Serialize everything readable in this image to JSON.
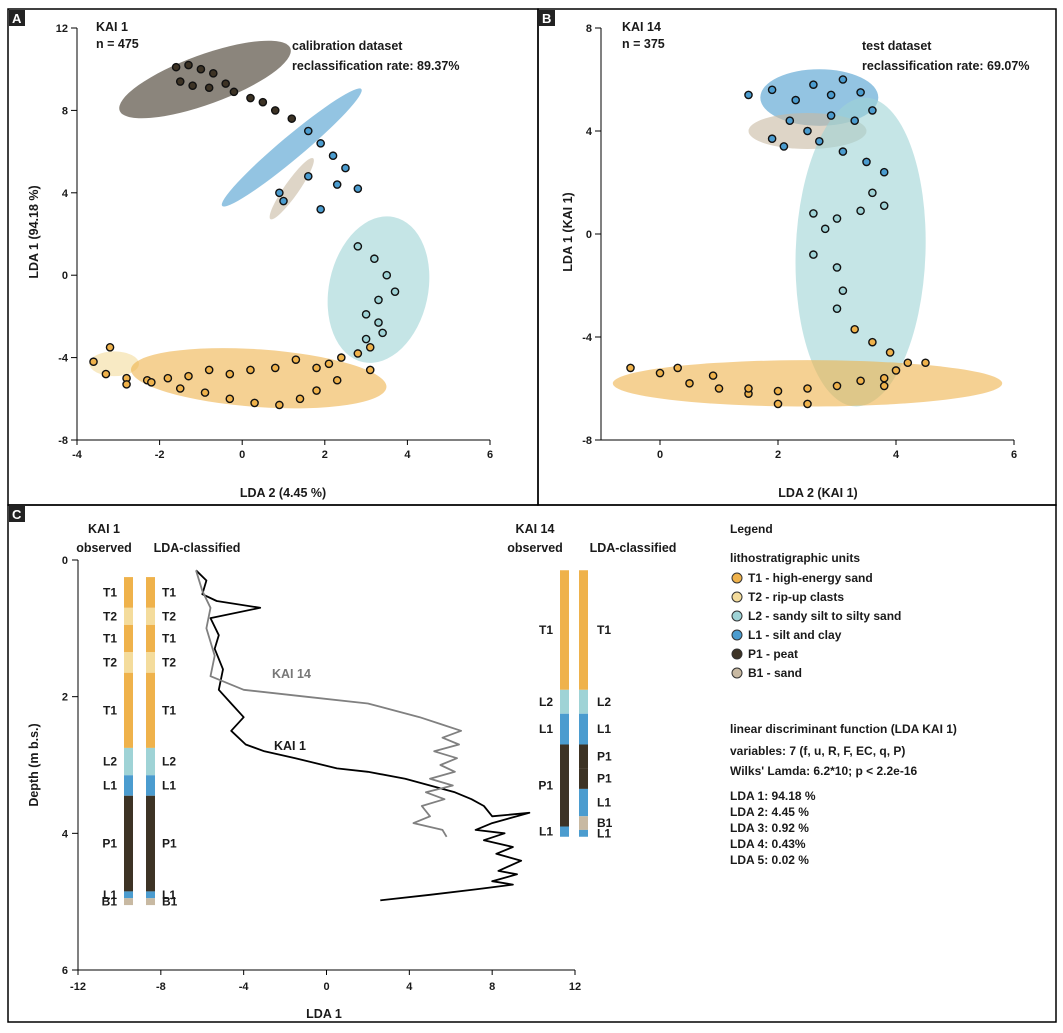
{
  "colors": {
    "T1": "#efb24b",
    "T2": "#f4dc9c",
    "L2": "#9fd3d6",
    "L1": "#4b9ccf",
    "P1": "#3d3325",
    "B1": "#c8b9a2"
  },
  "panelA": {
    "letter": "A",
    "site": "KAI 1",
    "n": "n = 475",
    "dataset": "calibration dataset",
    "rate": "reclassification rate: 89.37%",
    "xlabel": "LDA 2 (4.45 %)",
    "ylabel": "LDA 1 (94.18 %)",
    "xticks": [
      "-4",
      "-2",
      "0",
      "2",
      "4",
      "6"
    ],
    "yticks": [
      "12",
      "8",
      "4",
      "0",
      "-4",
      "-8"
    ]
  },
  "panelB": {
    "letter": "B",
    "site": "KAI 14",
    "n": "n = 375",
    "dataset": "test dataset",
    "rate": "reclassification rate: 69.07%",
    "xlabel": "LDA 2 (KAI 1)",
    "ylabel": "LDA 1 (KAI 1)",
    "xticks": [
      "0",
      "2",
      "4",
      "6"
    ],
    "yticks": [
      "8",
      "4",
      "0",
      "-4",
      "-8"
    ]
  },
  "panelC": {
    "letter": "C",
    "kai1_title": "KAI 1",
    "kai14_title": "KAI 14",
    "observed": "observed",
    "classified": "LDA-classified",
    "xlabel": "LDA 1",
    "ylabel": "Depth (m b.s.)",
    "xticks": [
      "-12",
      "-8",
      "-4",
      "0",
      "4",
      "8",
      "12"
    ],
    "yticks": [
      "0",
      "2",
      "4",
      "6"
    ],
    "kai14_curve_label": "KAI 14",
    "kai1_curve_label": "KAI 1",
    "kai1_obs_labels": [
      "T1",
      "T2",
      "T1",
      "T2",
      "T1",
      "L2",
      "L1",
      "P1",
      "L1",
      "B1"
    ],
    "kai1_cls_labels": [
      "T1",
      "T2",
      "T1",
      "T2",
      "T1",
      "L2",
      "L1",
      "P1",
      "L1",
      "B1"
    ],
    "kai14_obs_labels": [
      "T1",
      "L2",
      "L1",
      "P1",
      "L1"
    ],
    "kai14_cls_labels": [
      "T1",
      "L2",
      "L1",
      "P1",
      "P1",
      "L1",
      "B1",
      "L1"
    ]
  },
  "legend": {
    "title": "Legend",
    "units_title": "lithostratigraphic units",
    "items": [
      {
        "code": "T1",
        "label": "T1 - high-energy sand"
      },
      {
        "code": "T2",
        "label": "T2 - rip-up clasts"
      },
      {
        "code": "L2",
        "label": "L2 - sandy silt to silty sand"
      },
      {
        "code": "L1",
        "label": "L1 - silt and clay"
      },
      {
        "code": "P1",
        "label": "P1 - peat"
      },
      {
        "code": "B1",
        "label": "B1 - sand"
      }
    ],
    "lda_title": "linear discriminant function (LDA KAI 1)",
    "variables": "variables: 7 (f, u, R, F, EC, q, P)",
    "wilks": "Wilks' Lamda: 6.2*10; p < 2.2e-16",
    "lda_lines": [
      "LDA 1: 94.18 %",
      "LDA 2: 4.45 %",
      "LDA 3: 0.92 %",
      "LDA 4: 0.43%",
      "LDA 5: 0.02 %"
    ]
  },
  "chart_data": [
    {
      "type": "scatter",
      "title": "KAI 1",
      "xlabel": "LDA 2 (4.45 %)",
      "ylabel": "LDA 1 (94.18 %)",
      "xlim": [
        -4,
        6
      ],
      "ylim": [
        -8,
        12
      ],
      "ellipses": [
        {
          "unit": "P1",
          "cx": -0.9,
          "cy": 9.5,
          "rx": 2.2,
          "ry": 1.2,
          "angle_deg": -20
        },
        {
          "unit": "L1",
          "cx": 1.2,
          "cy": 6.2,
          "rx": 2.2,
          "ry": 0.55,
          "angle_deg": -40
        },
        {
          "unit": "B1",
          "cx": 1.2,
          "cy": 4.2,
          "rx": 0.9,
          "ry": 0.35,
          "angle_deg": -55
        },
        {
          "unit": "L2",
          "cx": 3.3,
          "cy": -0.7,
          "rx": 1.2,
          "ry": 3.6,
          "angle_deg": 12
        },
        {
          "unit": "T2",
          "cx": -3.1,
          "cy": -4.3,
          "rx": 0.6,
          "ry": 0.6,
          "angle_deg": 0
        },
        {
          "unit": "T1",
          "cx": 0.4,
          "cy": -5.0,
          "rx": 3.1,
          "ry": 1.4,
          "angle_deg": 4
        }
      ],
      "points": [
        [
          -1.6,
          10.1
        ],
        [
          -1.3,
          10.2
        ],
        [
          -1.0,
          10.0
        ],
        [
          -0.7,
          9.8
        ],
        [
          -1.5,
          9.4
        ],
        [
          -1.2,
          9.2
        ],
        [
          -0.8,
          9.1
        ],
        [
          -0.4,
          9.3
        ],
        [
          -0.2,
          8.9
        ],
        [
          0.2,
          8.6
        ],
        [
          0.5,
          8.4
        ],
        [
          0.8,
          8.0
        ],
        [
          1.2,
          7.6
        ],
        [
          1.6,
          7.0
        ],
        [
          1.9,
          6.4
        ],
        [
          2.2,
          5.8
        ],
        [
          2.5,
          5.2
        ],
        [
          2.8,
          4.2
        ],
        [
          2.3,
          4.4
        ],
        [
          1.6,
          4.8
        ],
        [
          0.9,
          4.0
        ],
        [
          1.0,
          3.6
        ],
        [
          1.9,
          3.2
        ],
        [
          2.8,
          1.4
        ],
        [
          3.2,
          0.8
        ],
        [
          3.5,
          0.0
        ],
        [
          3.7,
          -0.8
        ],
        [
          3.3,
          -1.2
        ],
        [
          3.0,
          -1.9
        ],
        [
          3.3,
          -2.3
        ],
        [
          3.4,
          -2.8
        ],
        [
          3.0,
          -3.1
        ],
        [
          3.1,
          -3.5
        ],
        [
          2.8,
          -3.8
        ],
        [
          2.4,
          -4.0
        ],
        [
          2.1,
          -4.3
        ],
        [
          1.8,
          -4.5
        ],
        [
          1.3,
          -4.1
        ],
        [
          0.8,
          -4.5
        ],
        [
          0.2,
          -4.6
        ],
        [
          -0.3,
          -4.8
        ],
        [
          -0.8,
          -4.6
        ],
        [
          -1.3,
          -4.9
        ],
        [
          -1.8,
          -5.0
        ],
        [
          -2.3,
          -5.1
        ],
        [
          -2.8,
          -5.0
        ],
        [
          -3.3,
          -4.8
        ],
        [
          -3.6,
          -4.2
        ],
        [
          -3.2,
          -3.5
        ],
        [
          -2.8,
          -5.3
        ],
        [
          -2.2,
          -5.2
        ],
        [
          -1.5,
          -5.5
        ],
        [
          -0.9,
          -5.7
        ],
        [
          -0.3,
          -6.0
        ],
        [
          0.3,
          -6.2
        ],
        [
          0.9,
          -6.3
        ],
        [
          1.4,
          -6.0
        ],
        [
          1.8,
          -5.6
        ],
        [
          2.3,
          -5.1
        ],
        [
          3.1,
          -4.6
        ]
      ]
    },
    {
      "type": "scatter",
      "title": "KAI 14",
      "xlabel": "LDA 2 (KAI 1)",
      "ylabel": "LDA 1 (KAI 1)",
      "xlim": [
        -1,
        6
      ],
      "ylim": [
        -8,
        8
      ],
      "ellipses": [
        {
          "unit": "L1",
          "cx": 2.7,
          "cy": 5.3,
          "rx": 1.0,
          "ry": 1.1,
          "angle_deg": 0
        },
        {
          "unit": "B1",
          "cx": 2.5,
          "cy": 4.0,
          "rx": 1.0,
          "ry": 0.7,
          "angle_deg": 0
        },
        {
          "unit": "L2",
          "cx": 3.4,
          "cy": -0.7,
          "rx": 1.1,
          "ry": 6.0,
          "angle_deg": 2
        },
        {
          "unit": "T1",
          "cx": 2.5,
          "cy": -5.8,
          "rx": 3.3,
          "ry": 0.9,
          "angle_deg": 0
        }
      ],
      "points": [
        [
          1.5,
          5.4
        ],
        [
          1.9,
          5.6
        ],
        [
          2.3,
          5.2
        ],
        [
          2.6,
          5.8
        ],
        [
          2.9,
          5.4
        ],
        [
          3.1,
          6.0
        ],
        [
          3.4,
          5.5
        ],
        [
          3.6,
          4.8
        ],
        [
          3.3,
          4.4
        ],
        [
          2.9,
          4.6
        ],
        [
          2.5,
          4.0
        ],
        [
          2.2,
          4.4
        ],
        [
          1.9,
          3.7
        ],
        [
          2.1,
          3.4
        ],
        [
          2.7,
          3.6
        ],
        [
          3.1,
          3.2
        ],
        [
          3.5,
          2.8
        ],
        [
          3.8,
          2.4
        ],
        [
          3.6,
          1.6
        ],
        [
          3.8,
          1.1
        ],
        [
          3.4,
          0.9
        ],
        [
          3.0,
          0.6
        ],
        [
          2.6,
          0.8
        ],
        [
          2.8,
          0.2
        ],
        [
          2.6,
          -0.8
        ],
        [
          3.0,
          -1.3
        ],
        [
          3.1,
          -2.2
        ],
        [
          3.0,
          -2.9
        ],
        [
          3.3,
          -3.7
        ],
        [
          3.6,
          -4.2
        ],
        [
          3.9,
          -4.6
        ],
        [
          4.2,
          -5.0
        ],
        [
          3.8,
          -5.6
        ],
        [
          3.4,
          -5.7
        ],
        [
          3.0,
          -5.9
        ],
        [
          2.5,
          -6.0
        ],
        [
          2.0,
          -6.1
        ],
        [
          1.5,
          -6.2
        ],
        [
          1.0,
          -6.0
        ],
        [
          0.5,
          -5.8
        ],
        [
          0.0,
          -5.4
        ],
        [
          -0.5,
          -5.2
        ],
        [
          0.3,
          -5.2
        ],
        [
          0.9,
          -5.5
        ],
        [
          1.5,
          -6.0
        ],
        [
          2.0,
          -6.6
        ],
        [
          2.5,
          -6.6
        ],
        [
          4.5,
          -5.0
        ],
        [
          4.0,
          -5.3
        ],
        [
          3.8,
          -5.9
        ]
      ]
    },
    {
      "type": "line",
      "xlabel": "LDA 1",
      "ylabel": "Depth (m b.s.)",
      "xlim": [
        -12,
        12
      ],
      "ylim": [
        6,
        0
      ],
      "series": [
        {
          "name": "KAI 1",
          "color": "#000000",
          "points": [
            [
              -6.3,
              0.15
            ],
            [
              -5.8,
              0.3
            ],
            [
              -6.0,
              0.5
            ],
            [
              -5.3,
              0.6
            ],
            [
              -3.2,
              0.7
            ],
            [
              -5.6,
              0.85
            ],
            [
              -5.2,
              1.1
            ],
            [
              -5.4,
              1.3
            ],
            [
              -5.0,
              1.6
            ],
            [
              -5.2,
              1.9
            ],
            [
              -4.6,
              2.1
            ],
            [
              -4.0,
              2.3
            ],
            [
              -4.6,
              2.5
            ],
            [
              -3.9,
              2.7
            ],
            [
              -3.0,
              2.8
            ],
            [
              -1.5,
              2.9
            ],
            [
              0.5,
              3.05
            ],
            [
              2.0,
              3.1
            ],
            [
              3.8,
              3.2
            ],
            [
              5.0,
              3.3
            ],
            [
              6.2,
              3.4
            ],
            [
              7.0,
              3.5
            ],
            [
              7.6,
              3.6
            ],
            [
              8.0,
              3.75
            ],
            [
              9.8,
              3.7
            ],
            [
              8.0,
              3.85
            ],
            [
              7.2,
              3.95
            ],
            [
              8.6,
              4.0
            ],
            [
              7.6,
              4.1
            ],
            [
              9.0,
              4.2
            ],
            [
              8.2,
              4.3
            ],
            [
              9.4,
              4.4
            ],
            [
              8.3,
              4.55
            ],
            [
              9.2,
              4.6
            ],
            [
              8.0,
              4.7
            ],
            [
              9.0,
              4.75
            ],
            [
              7.2,
              4.82
            ],
            [
              5.0,
              4.9
            ],
            [
              2.6,
              4.98
            ]
          ]
        },
        {
          "name": "KAI 14",
          "color": "#808080",
          "points": [
            [
              -6.3,
              0.15
            ],
            [
              -6.0,
              0.45
            ],
            [
              -5.6,
              0.7
            ],
            [
              -5.8,
              1.0
            ],
            [
              -5.4,
              1.4
            ],
            [
              -5.6,
              1.7
            ],
            [
              -4.0,
              1.9
            ],
            [
              -1.0,
              2.0
            ],
            [
              2.0,
              2.1
            ],
            [
              4.5,
              2.3
            ],
            [
              5.5,
              2.4
            ],
            [
              6.5,
              2.5
            ],
            [
              5.6,
              2.6
            ],
            [
              6.4,
              2.7
            ],
            [
              5.2,
              2.8
            ],
            [
              6.3,
              2.9
            ],
            [
              5.5,
              3.0
            ],
            [
              6.2,
              3.1
            ],
            [
              5.0,
              3.2
            ],
            [
              6.1,
              3.3
            ],
            [
              4.8,
              3.4
            ],
            [
              5.7,
              3.5
            ],
            [
              4.6,
              3.6
            ],
            [
              5.0,
              3.75
            ],
            [
              4.2,
              3.85
            ],
            [
              5.6,
              3.95
            ],
            [
              5.8,
              4.05
            ]
          ]
        }
      ]
    }
  ]
}
